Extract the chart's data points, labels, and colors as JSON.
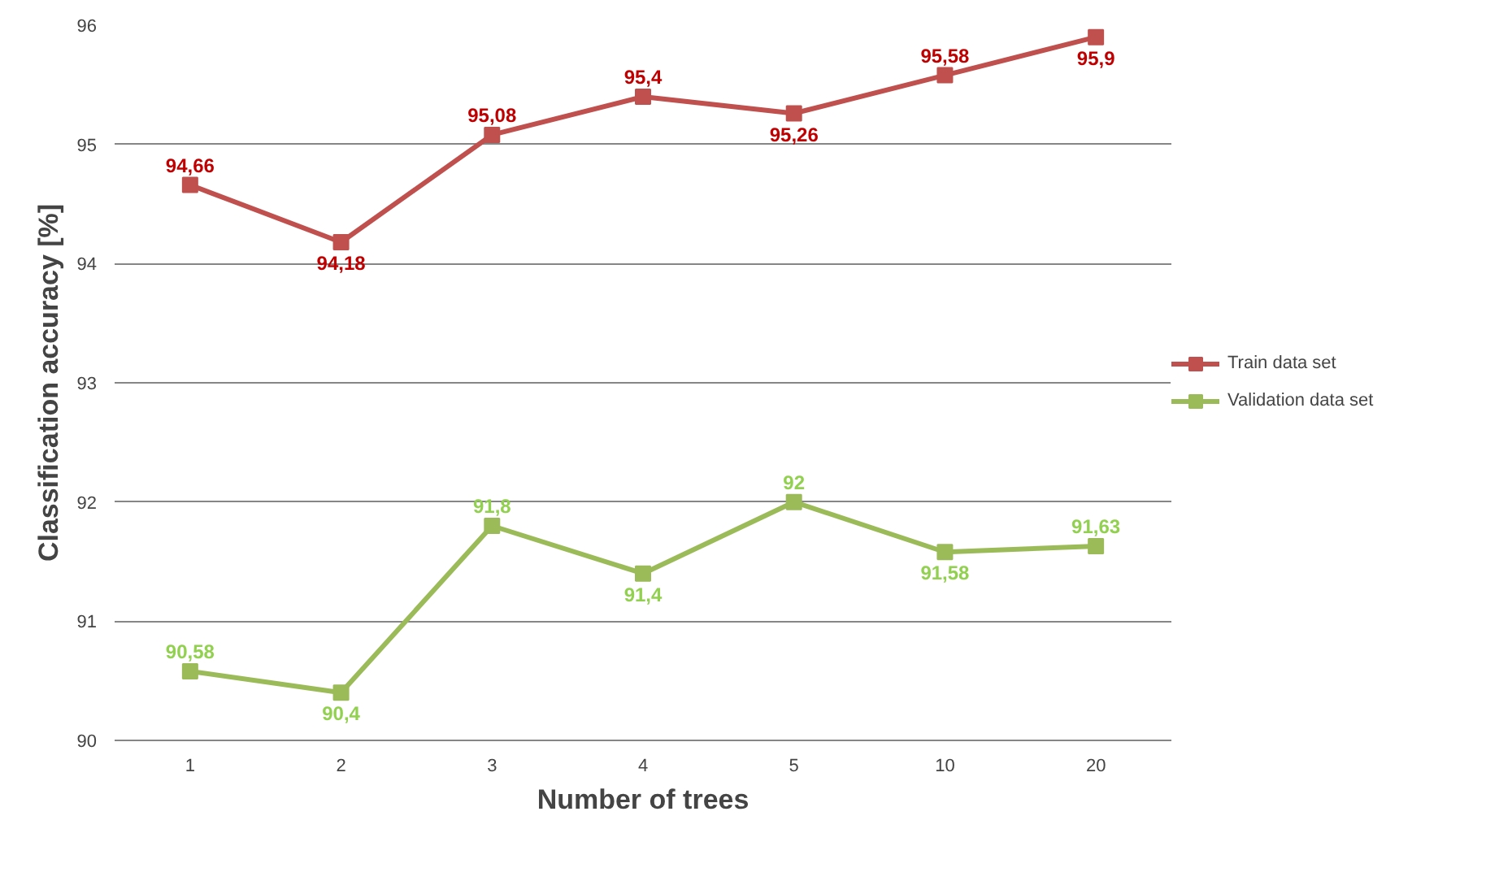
{
  "chart_data": {
    "type": "line",
    "xlabel": "Number of trees",
    "ylabel": "Classification accuracy [%]",
    "categories": [
      "1",
      "2",
      "3",
      "4",
      "5",
      "10",
      "20"
    ],
    "series": [
      {
        "name": "Train data set",
        "color": "#c0504d",
        "values": [
          94.66,
          94.18,
          95.08,
          95.4,
          95.26,
          95.58,
          95.9
        ],
        "value_labels": [
          "94,66",
          "94,18",
          "95,08",
          "95,4",
          "95,26",
          "95,58",
          "95,9"
        ]
      },
      {
        "name": "Validation data set",
        "color": "#9bbb59",
        "values": [
          90.58,
          90.4,
          91.8,
          91.4,
          92,
          91.58,
          91.63
        ],
        "value_labels": [
          "90,58",
          "90,4",
          "91,8",
          "91,4",
          "92",
          "91,58",
          "91,63"
        ]
      }
    ],
    "ylim": [
      90,
      96
    ],
    "yticks": [
      90,
      91,
      92,
      93,
      94,
      95,
      96
    ],
    "grid": "y",
    "legend": "right",
    "marker": "square",
    "line_style": "solid"
  }
}
